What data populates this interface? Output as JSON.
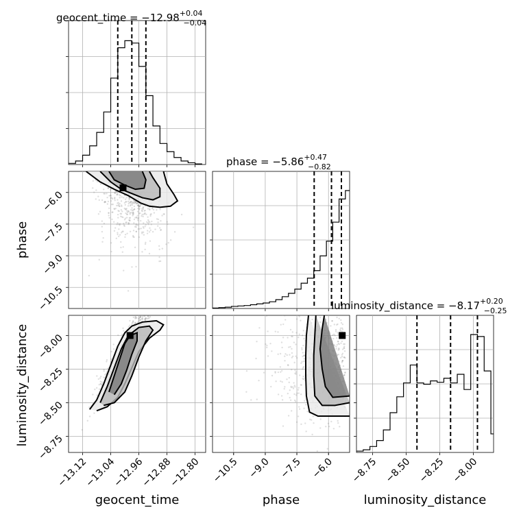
{
  "chart_data": {
    "type": "corner",
    "parameters": [
      "geocent_time",
      "phase",
      "luminosity_distance"
    ],
    "axis_labels": {
      "geocent_time": "geocent_time",
      "phase": "phase",
      "luminosity_distance": "luminosity_distance"
    },
    "ranges": {
      "geocent_time": [
        -13.16,
        -12.77
      ],
      "phase": [
        -11.5,
        -5.0
      ],
      "luminosity_distance": [
        -8.87,
        -7.85
      ]
    },
    "ticks": {
      "geocent_time": [
        "−13.12",
        "−13.04",
        "−12.96",
        "−12.88",
        "−12.80"
      ],
      "phase_y": [
        "−6.0",
        "−7.5",
        "−9.0",
        "−10.5"
      ],
      "phase_x": [
        "−10.5",
        "−9.0",
        "−7.5",
        "−6.0"
      ],
      "luminosity_distance_y": [
        "−8.00",
        "−8.25",
        "−8.50",
        "−8.75"
      ],
      "luminosity_distance_x": [
        "−8.75",
        "−8.50",
        "−8.25",
        "−8.00"
      ]
    },
    "tick_values": {
      "geocent_time": [
        -13.12,
        -13.04,
        -12.96,
        -12.88,
        -12.8
      ],
      "phase": [
        -6.0,
        -7.5,
        -9.0,
        -10.5
      ],
      "luminosity_distance": [
        -8.0,
        -8.25,
        -8.5,
        -8.75
      ]
    },
    "titles": {
      "geocent_time": {
        "prefix": "geocent_time = −12.98",
        "sup": "+0.04",
        "sub": "−0.04"
      },
      "phase": {
        "prefix": "phase = −5.86",
        "sup": "+0.47",
        "sub": "−0.82"
      },
      "luminosity_distance": {
        "prefix": "luminosity_distance = −8.17",
        "sup": "+0.20",
        "sub": "−0.25"
      }
    },
    "quantiles": {
      "geocent_time": [
        -13.02,
        -12.98,
        -12.94
      ],
      "phase": [
        -6.68,
        -5.86,
        -5.39
      ],
      "luminosity_distance": [
        -8.42,
        -8.17,
        -7.97
      ]
    },
    "histograms": {
      "geocent_time": {
        "edges": [
          -13.16,
          -13.14,
          -13.12,
          -13.1,
          -13.08,
          -13.06,
          -13.04,
          -13.02,
          -13.0,
          -12.98,
          -12.96,
          -12.94,
          -12.92,
          -12.9,
          -12.88,
          -12.86,
          -12.84,
          -12.82,
          -12.8,
          -12.78
        ],
        "counts": [
          2,
          6,
          16,
          32,
          55,
          90,
          148,
          200,
          212,
          208,
          168,
          118,
          66,
          36,
          22,
          12,
          6,
          3,
          1
        ]
      },
      "phase": {
        "edges": [
          -11.5,
          -11.2,
          -10.9,
          -10.6,
          -10.3,
          -10.0,
          -9.7,
          -9.4,
          -9.1,
          -8.8,
          -8.5,
          -8.2,
          -7.9,
          -7.6,
          -7.3,
          -7.0,
          -6.7,
          -6.4,
          -6.1,
          -5.8,
          -5.5,
          -5.2,
          -5.0
        ],
        "counts": [
          1,
          2,
          3,
          5,
          6,
          7,
          9,
          11,
          13,
          16,
          21,
          28,
          36,
          46,
          60,
          72,
          90,
          125,
          160,
          205,
          260,
          280
        ]
      },
      "luminosity_distance": {
        "edges": [
          -8.87,
          -8.82,
          -8.77,
          -8.72,
          -8.67,
          -8.62,
          -8.57,
          -8.52,
          -8.47,
          -8.42,
          -8.37,
          -8.32,
          -8.27,
          -8.22,
          -8.17,
          -8.12,
          -8.07,
          -8.02,
          -7.97,
          -7.92,
          -7.87,
          -7.85
        ],
        "counts": [
          2,
          4,
          9,
          18,
          34,
          60,
          84,
          105,
          132,
          105,
          103,
          108,
          106,
          112,
          105,
          118,
          95,
          178,
          175,
          123,
          28
        ]
      }
    },
    "contours_2d": {
      "phase_vs_geocent_time": {
        "peak": [
          -13.005,
          -5.78
        ],
        "levels": [
          [
            [
              -13.11,
              -5.0
            ],
            [
              -13.07,
              -5.5
            ],
            [
              -13.03,
              -5.85
            ],
            [
              -12.99,
              -6.15
            ],
            [
              -12.955,
              -6.5
            ],
            [
              -12.93,
              -6.65
            ],
            [
              -12.9,
              -6.7
            ],
            [
              -12.87,
              -6.65
            ],
            [
              -12.85,
              -6.4
            ],
            [
              -12.86,
              -6.1
            ],
            [
              -12.88,
              -5.6
            ],
            [
              -12.89,
              -5.0
            ]
          ],
          [
            [
              -13.07,
              -5.0
            ],
            [
              -13.04,
              -5.5
            ],
            [
              -13.01,
              -5.85
            ],
            [
              -12.98,
              -6.05
            ],
            [
              -12.95,
              -6.25
            ],
            [
              -12.92,
              -6.35
            ],
            [
              -12.9,
              -6.2
            ],
            [
              -12.9,
              -5.8
            ],
            [
              -12.92,
              -5.3
            ],
            [
              -12.93,
              -5.0
            ]
          ],
          [
            [
              -13.045,
              -5.0
            ],
            [
              -13.03,
              -5.4
            ],
            [
              -13.0,
              -5.65
            ],
            [
              -12.97,
              -5.85
            ],
            [
              -12.945,
              -5.8
            ],
            [
              -12.94,
              -5.4
            ],
            [
              -12.95,
              -5.0
            ]
          ]
        ]
      },
      "luminosity_distance_vs_geocent_time": {
        "peak": [
          -12.985,
          -8.0
        ],
        "levels": [
          [
            [
              -13.1,
              -8.55
            ],
            [
              -13.08,
              -8.48
            ],
            [
              -13.06,
              -8.36
            ],
            [
              -13.04,
              -8.22
            ],
            [
              -13.02,
              -8.08
            ],
            [
              -13.0,
              -7.98
            ],
            [
              -12.98,
              -7.93
            ],
            [
              -12.95,
              -7.9
            ],
            [
              -12.91,
              -7.89
            ],
            [
              -12.89,
              -7.92
            ],
            [
              -12.9,
              -7.96
            ],
            [
              -12.93,
              -8.02
            ],
            [
              -12.96,
              -8.12
            ],
            [
              -12.98,
              -8.24
            ],
            [
              -13.0,
              -8.36
            ],
            [
              -13.02,
              -8.46
            ],
            [
              -13.05,
              -8.53
            ],
            [
              -13.08,
              -8.56
            ]
          ],
          [
            [
              -13.07,
              -8.5
            ],
            [
              -13.05,
              -8.38
            ],
            [
              -13.03,
              -8.24
            ],
            [
              -13.01,
              -8.1
            ],
            [
              -12.99,
              -8.0
            ],
            [
              -12.96,
              -7.94
            ],
            [
              -12.93,
              -7.93
            ],
            [
              -12.92,
              -7.96
            ],
            [
              -12.94,
              -8.04
            ],
            [
              -12.96,
              -8.16
            ],
            [
              -12.98,
              -8.3
            ],
            [
              -13.0,
              -8.42
            ],
            [
              -13.03,
              -8.5
            ],
            [
              -13.06,
              -8.52
            ]
          ],
          [
            [
              -13.045,
              -8.42
            ],
            [
              -13.03,
              -8.3
            ],
            [
              -13.015,
              -8.18
            ],
            [
              -13.0,
              -8.06
            ],
            [
              -12.985,
              -8.0
            ],
            [
              -12.965,
              -7.98
            ],
            [
              -12.965,
              -8.04
            ],
            [
              -12.98,
              -8.14
            ],
            [
              -12.995,
              -8.26
            ],
            [
              -13.01,
              -8.36
            ],
            [
              -13.03,
              -8.44
            ]
          ]
        ]
      },
      "luminosity_distance_vs_phase": {
        "peak": [
          -5.35,
          -8.0
        ],
        "levels": [
          [
            [
              -6.95,
              -7.85
            ],
            [
              -7.05,
              -8.0
            ],
            [
              -7.08,
              -8.15
            ],
            [
              -7.08,
              -8.3
            ],
            [
              -7.05,
              -8.45
            ],
            [
              -6.9,
              -8.57
            ],
            [
              -6.5,
              -8.6
            ],
            [
              -5.8,
              -8.6
            ],
            [
              -5.0,
              -8.6
            ]
          ],
          [
            [
              -6.6,
              -7.85
            ],
            [
              -6.65,
              -8.0
            ],
            [
              -6.7,
              -8.15
            ],
            [
              -6.7,
              -8.3
            ],
            [
              -6.65,
              -8.45
            ],
            [
              -6.3,
              -8.52
            ],
            [
              -5.7,
              -8.52
            ],
            [
              -5.0,
              -8.5
            ]
          ],
          [
            [
              -6.2,
              -7.85
            ],
            [
              -6.3,
              -7.95
            ],
            [
              -6.4,
              -8.1
            ],
            [
              -6.3,
              -8.25
            ],
            [
              -6.15,
              -8.38
            ],
            [
              -5.8,
              -8.46
            ],
            [
              -5.0,
              -8.45
            ]
          ]
        ]
      }
    },
    "scatter_seed": 7
  }
}
